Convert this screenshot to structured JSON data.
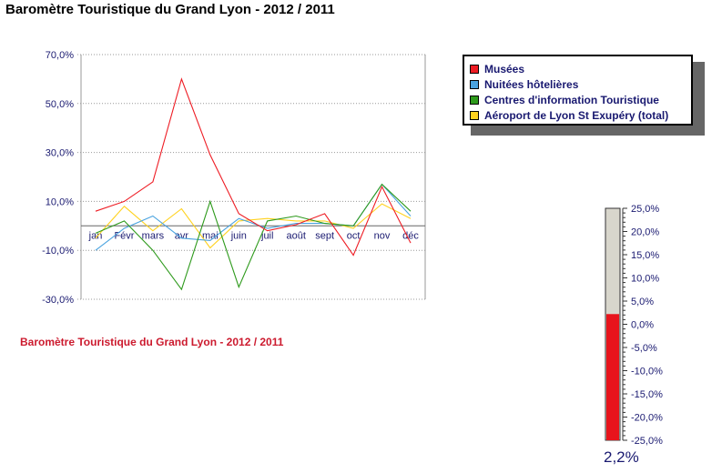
{
  "page_title": "Baromètre Touristique du Grand Lyon - 2012 / 2011",
  "caption": "Baromètre Touristique du Grand Lyon - 2012 / 2011",
  "legend": [
    {
      "label": "Musées",
      "color": "#ee1c24"
    },
    {
      "label": "Nuitées hôtelières",
      "color": "#4aa3df"
    },
    {
      "label": "Centres d'information Touristique",
      "color": "#2e9a1c"
    },
    {
      "label": "Aéroport de Lyon St Exupéry (total)",
      "color": "#ffd21f"
    }
  ],
  "chart_data": [
    {
      "type": "line",
      "title": "",
      "xlabel": "",
      "ylabel": "",
      "categories": [
        "jan",
        "Févr",
        "mars",
        "avr",
        "mai",
        "juin",
        "juil",
        "août",
        "sept",
        "oct",
        "nov",
        "déc"
      ],
      "y_tick_labels": [
        "70,0%",
        "50,0%",
        "30,0%",
        "10,0%",
        "-10,0%",
        "-30,0%"
      ],
      "ylim": [
        -30,
        70
      ],
      "grid": true,
      "legend_position": "right",
      "series": [
        {
          "name": "Musées",
          "color": "#ee1c24",
          "values": [
            6,
            10,
            18,
            60,
            29,
            5,
            -2,
            0.5,
            5,
            -12,
            16,
            -7
          ]
        },
        {
          "name": "Nuitées hôtelières",
          "color": "#4aa3df",
          "values": [
            -10,
            -1,
            4,
            -5,
            -6,
            3,
            -1,
            1,
            1,
            0,
            17,
            4
          ]
        },
        {
          "name": "Centres d'information Touristique",
          "color": "#2e9a1c",
          "values": [
            -3,
            2,
            -10,
            -26,
            10,
            -25,
            2,
            4,
            1,
            0,
            17,
            6
          ]
        },
        {
          "name": "Aéroport de Lyon St Exupéry (total)",
          "color": "#ffd21f",
          "values": [
            -5,
            8,
            -2,
            7,
            -9,
            2,
            3,
            2,
            2,
            -1,
            9,
            3
          ]
        }
      ]
    },
    {
      "type": "gauge",
      "y_tick_labels": [
        "25,0%",
        "20,0%",
        "15,0%",
        "10,0%",
        "5,0%",
        "0,0%",
        "-5,0%",
        "-10,0%",
        "-15,0%",
        "-20,0%",
        "-25,0%"
      ],
      "ylim": [
        -25,
        25
      ],
      "value": 2.2,
      "value_label": "2,2%",
      "fill_color": "#e8141c",
      "empty_color": "#d8d6cc"
    }
  ]
}
